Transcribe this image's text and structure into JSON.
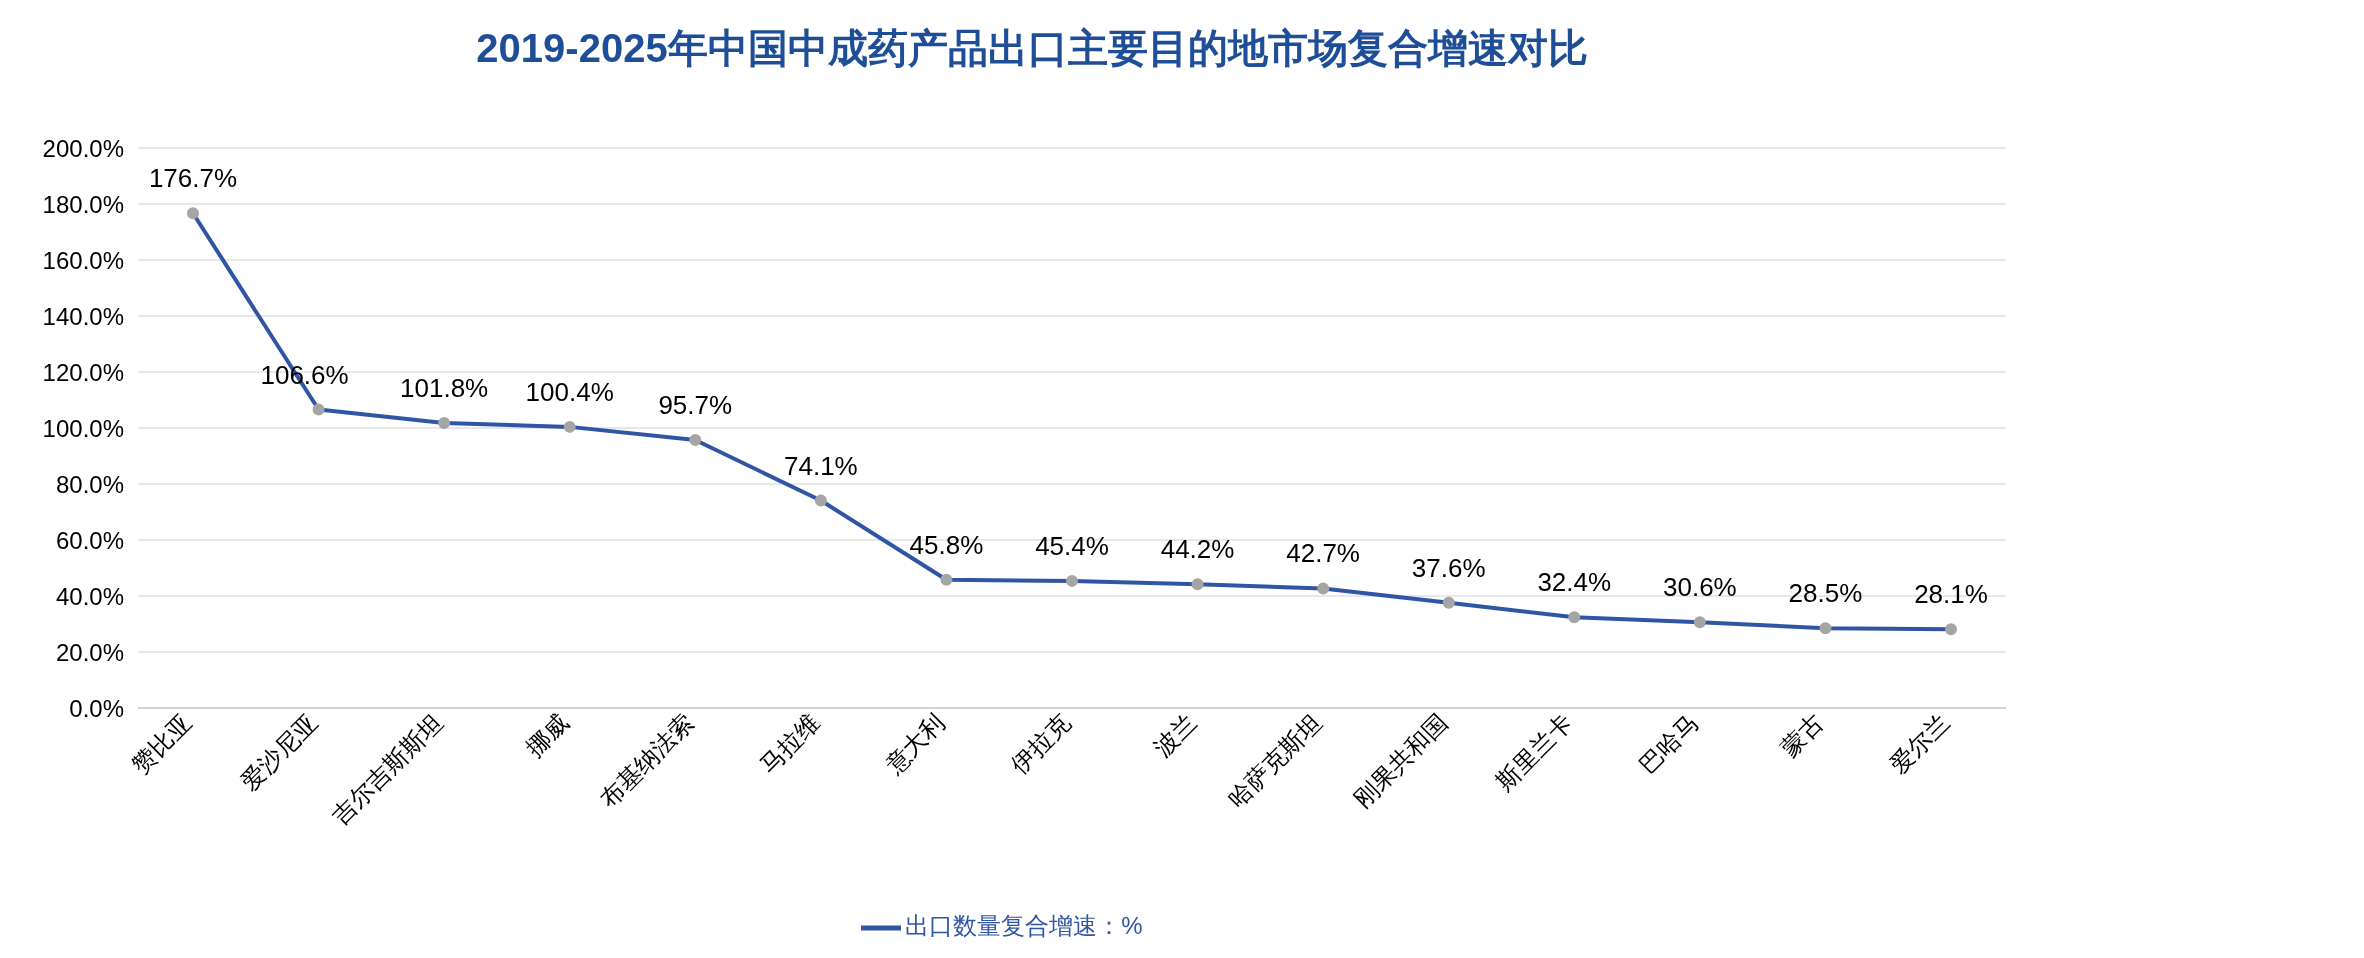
{
  "chart_data": {
    "type": "line",
    "title": "2019-2025年中国中成药产品出口主要目的地市场复合增速对比",
    "categories": [
      "赞比亚",
      "爱沙尼亚",
      "吉尔吉斯斯坦",
      "挪威",
      "布基纳法索",
      "马拉维",
      "意大利",
      "伊拉克",
      "波兰",
      "哈萨克斯坦",
      "刚果共和国",
      "斯里兰卡",
      "巴哈马",
      "蒙古",
      "爱尔兰"
    ],
    "series": [
      {
        "name": "出口数量复合增速：%",
        "color": "#2f55a4",
        "values": [
          176.7,
          106.6,
          101.8,
          100.4,
          95.7,
          74.1,
          45.8,
          45.4,
          44.2,
          42.7,
          37.6,
          32.4,
          30.6,
          28.5,
          28.1
        ],
        "value_labels": [
          "176.7%",
          "106.6%",
          "101.8%",
          "100.4%",
          "95.7%",
          "74.1%",
          "45.8%",
          "45.4%",
          "44.2%",
          "42.7%",
          "37.6%",
          "32.4%",
          "30.6%",
          "28.5%",
          "28.1%"
        ]
      }
    ],
    "ylim": [
      0,
      200
    ],
    "yticks": [
      {
        "value": 0,
        "label": "0.0%"
      },
      {
        "value": 20,
        "label": "20.0%"
      },
      {
        "value": 40,
        "label": "40.0%"
      },
      {
        "value": 60,
        "label": "60.0%"
      },
      {
        "value": 80,
        "label": "80.0%"
      },
      {
        "value": 100,
        "label": "100.0%"
      },
      {
        "value": 120,
        "label": "120.0%"
      },
      {
        "value": 140,
        "label": "140.0%"
      },
      {
        "value": 160,
        "label": "160.0%"
      },
      {
        "value": 180,
        "label": "180.0%"
      },
      {
        "value": 200,
        "label": "200.0%"
      }
    ],
    "grid": "y",
    "legend": "bottom",
    "marker": "circle",
    "line_style": "solid"
  }
}
